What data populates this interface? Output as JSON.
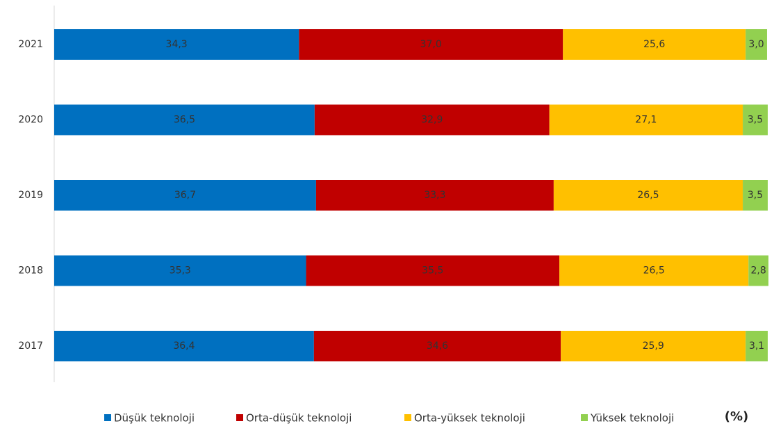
{
  "chart_data": {
    "type": "stacked-barh",
    "categories": [
      "2021",
      "2020",
      "2019",
      "2018",
      "2017"
    ],
    "series": [
      {
        "name": "Düşük teknoloji",
        "color": "#0070c0",
        "values": [
          34.3,
          36.5,
          36.7,
          35.3,
          36.4
        ],
        "value_labels": [
          "34,3",
          "36,5",
          "36,7",
          "35,3",
          "36,4"
        ]
      },
      {
        "name": "Orta-düşük teknoloji",
        "color": "#c00000",
        "values": [
          37.0,
          32.9,
          33.3,
          35.5,
          34.6
        ],
        "value_labels": [
          "37,0",
          "32,9",
          "33,3",
          "35,5",
          "34,6"
        ]
      },
      {
        "name": "Orta-yüksek teknoloji",
        "color": "#ffc000",
        "values": [
          25.6,
          27.1,
          26.5,
          26.5,
          25.9
        ],
        "value_labels": [
          "25,6",
          "27,1",
          "26,5",
          "26,5",
          "25,9"
        ]
      },
      {
        "name": "Yüksek teknoloji",
        "color": "#92d050",
        "values": [
          3.0,
          3.5,
          3.5,
          2.8,
          3.1
        ],
        "value_labels": [
          "3,0",
          "3,5",
          "3,5",
          "2,8",
          "3,1"
        ]
      }
    ],
    "xlim": [
      0,
      100
    ],
    "unit_label": "(%)"
  }
}
